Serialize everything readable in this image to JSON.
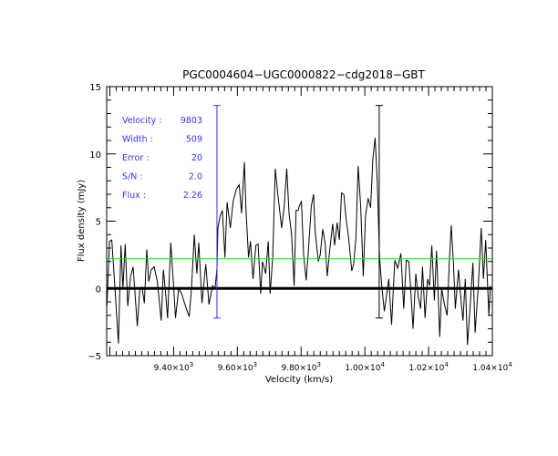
{
  "chart_data": {
    "type": "line",
    "title": "PGC0004604−UGC0000822−cdg2018−GBT",
    "xlabel": "Velocity (km/s)",
    "ylabel": "Flux density (mJy)",
    "xlim": [
      9190,
      10400
    ],
    "ylim": [
      -5,
      15
    ],
    "grid": false,
    "xticks": [
      {
        "value": 9400,
        "mantissa": "9.40×10",
        "exp": "3"
      },
      {
        "value": 9600,
        "mantissa": "9.60×10",
        "exp": "3"
      },
      {
        "value": 9800,
        "mantissa": "9.80×10",
        "exp": "3"
      },
      {
        "value": 10000,
        "mantissa": "1.00×10",
        "exp": "4"
      },
      {
        "value": 10200,
        "mantissa": "1.02×10",
        "exp": "4"
      },
      {
        "value": 10400,
        "mantissa": "1.04×10",
        "exp": "4"
      }
    ],
    "yticks": [
      {
        "value": 15,
        "label": "15"
      },
      {
        "value": 10,
        "label": "10"
      },
      {
        "value": 5,
        "label": "5"
      },
      {
        "value": 0,
        "label": "0"
      },
      {
        "value": -5,
        "label": "−5"
      }
    ],
    "x_minor_step": 20,
    "y_minor_step": 1,
    "series": [
      {
        "name": "spectrum",
        "color": "#000000",
        "x": [
          9191,
          9199,
          9206,
          9216,
          9227,
          9235,
          9241,
          9248,
          9256,
          9265,
          9273,
          9279,
          9286,
          9294,
          9301,
          9308,
          9316,
          9322,
          9330,
          9339,
          9349,
          9361,
          9368,
          9375,
          9381,
          9391,
          9399,
          9406,
          9416,
          9425,
          9437,
          9449,
          9456,
          9465,
          9473,
          9479,
          9489,
          9501,
          9511,
          9522,
          9530,
          9536,
          9539,
          9546,
          9553,
          9561,
          9568,
          9578,
          9587,
          9597,
          9606,
          9613,
          9622,
          9627,
          9635,
          9641,
          9649,
          9658,
          9665,
          9673,
          9679,
          9689,
          9697,
          9703,
          9711,
          9719,
          9727,
          9739,
          9747,
          9755,
          9762,
          9770,
          9778,
          9784,
          9791,
          9794,
          9801,
          9808,
          9816,
          9822,
          9832,
          9839,
          9844,
          9854,
          9860,
          9868,
          9875,
          9882,
          9890,
          9899,
          9905,
          9913,
          9920,
          9927,
          9934,
          9941,
          9949,
          9959,
          9965,
          9972,
          9979,
          9987,
          9995,
          10002,
          10010,
          10018,
          10025,
          10032,
          10039,
          10046,
          10052,
          10061,
          10067,
          10075,
          10084,
          10094,
          10103,
          10113,
          10122,
          10130,
          10138,
          10143,
          10151,
          10160,
          10168,
          10175,
          10181,
          10189,
          10197,
          10203,
          10210,
          10218,
          10225,
          10235,
          10241,
          10249,
          10258,
          10265,
          10271,
          10278,
          10284,
          10294,
          10301,
          10308,
          10315,
          10322,
          10330,
          10339,
          10346,
          10356,
          10365,
          10372,
          10379,
          10389,
          10394
        ],
        "y": [
          -1.3,
          3.5,
          3.6,
          0.0,
          -4.1,
          3.2,
          0.0,
          3.3,
          -1.3,
          0.9,
          1.6,
          -0.4,
          -2.8,
          0.0,
          0.1,
          -1.1,
          2.9,
          0.5,
          1.4,
          1.6,
          0.5,
          -2.4,
          1.4,
          -0.4,
          -2.2,
          3.4,
          0.5,
          -2.2,
          0.0,
          -0.4,
          -1.3,
          -2.1,
          0.0,
          4.0,
          1.1,
          3.4,
          -1.1,
          1.8,
          -1.2,
          0.2,
          0.0,
          1.5,
          4.5,
          5.4,
          5.8,
          2.3,
          6.4,
          4.5,
          6.5,
          7.4,
          7.7,
          5.6,
          9.4,
          5.8,
          2.3,
          3.5,
          0.7,
          3.2,
          3.3,
          -0.4,
          2.0,
          1.1,
          3.5,
          -0.4,
          2.3,
          8.9,
          7.0,
          4.5,
          6.1,
          8.9,
          5.6,
          4.0,
          0.2,
          5.8,
          5.8,
          6.1,
          6.5,
          2.5,
          0.6,
          2.5,
          6.1,
          7.0,
          4.3,
          2.0,
          2.5,
          4.4,
          3.4,
          0.9,
          2.9,
          4.8,
          3.2,
          4.9,
          3.6,
          7.1,
          7.0,
          5.2,
          3.8,
          1.3,
          1.8,
          3.8,
          9.1,
          6.1,
          0.9,
          5.4,
          6.7,
          6.0,
          9.6,
          11.2,
          7.9,
          2.5,
          0.5,
          -1.7,
          -0.7,
          0.7,
          -2.7,
          2.1,
          1.5,
          2.6,
          -1.5,
          2.1,
          2.0,
          0.2,
          -3.0,
          1.1,
          -0.7,
          -1.5,
          1.6,
          -2.2,
          0.7,
          0.2,
          3.2,
          -0.9,
          2.8,
          -3.6,
          0.0,
          -1.1,
          -2.0,
          2.0,
          4.7,
          1.8,
          -1.5,
          1.4,
          -0.7,
          -2.4,
          0.7,
          -4.2,
          -1.5,
          1.9,
          -3.3,
          0.2,
          4.5,
          0.7,
          3.6,
          -2.0,
          0.2
        ]
      }
    ],
    "baseline": {
      "y": 0,
      "color": "#000000"
    },
    "level_line": {
      "y": 2.2,
      "color": "#00ff00"
    },
    "markers": [
      {
        "x": 9536,
        "y_top": 13.6,
        "y_bottom": -2.2,
        "color": "#3333ff"
      },
      {
        "x": 10045,
        "y_top": 13.6,
        "y_bottom": -2.2,
        "color": "#000000"
      }
    ],
    "annotations": [
      {
        "label": "Velocity :",
        "value": "9803"
      },
      {
        "label": "Width :",
        "value": "509"
      },
      {
        "label": "Error :",
        "value": "20"
      },
      {
        "label": "S/N :",
        "value": "2.0"
      },
      {
        "label": "Flux :",
        "value": "2.26"
      }
    ],
    "annotation_color": "#3333ff"
  }
}
